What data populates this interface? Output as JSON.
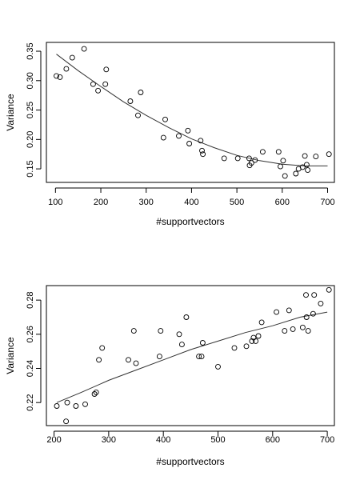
{
  "chart_data": [
    {
      "type": "scatter",
      "xlabel": "#supportvectors",
      "ylabel": "Variance",
      "xlim": [
        80,
        715
      ],
      "ylim": [
        0.127,
        0.365
      ],
      "xticks": [
        100,
        200,
        300,
        400,
        500,
        600,
        700
      ],
      "xtick_labels": [
        "100",
        "200",
        "300",
        "400",
        "500",
        "600",
        "700"
      ],
      "yticks": [
        0.15,
        0.2,
        0.25,
        0.3,
        0.35
      ],
      "ytick_labels": [
        "0.15",
        "0.20",
        "0.25",
        "0.30",
        "0.35"
      ],
      "grid": false,
      "points": [
        [
          102,
          0.308
        ],
        [
          110,
          0.306
        ],
        [
          124,
          0.32
        ],
        [
          137,
          0.339
        ],
        [
          163,
          0.354
        ],
        [
          183,
          0.294
        ],
        [
          194,
          0.283
        ],
        [
          210,
          0.294
        ],
        [
          212,
          0.319
        ],
        [
          265,
          0.265
        ],
        [
          282,
          0.241
        ],
        [
          288,
          0.28
        ],
        [
          338,
          0.203
        ],
        [
          342,
          0.234
        ],
        [
          372,
          0.206
        ],
        [
          392,
          0.215
        ],
        [
          395,
          0.193
        ],
        [
          420,
          0.198
        ],
        [
          423,
          0.181
        ],
        [
          425,
          0.175
        ],
        [
          472,
          0.168
        ],
        [
          502,
          0.168
        ],
        [
          527,
          0.168
        ],
        [
          528,
          0.156
        ],
        [
          532,
          0.16
        ],
        [
          540,
          0.165
        ],
        [
          557,
          0.179
        ],
        [
          592,
          0.179
        ],
        [
          596,
          0.154
        ],
        [
          602,
          0.164
        ],
        [
          606,
          0.138
        ],
        [
          630,
          0.142
        ],
        [
          636,
          0.15
        ],
        [
          645,
          0.153
        ],
        [
          650,
          0.172
        ],
        [
          654,
          0.157
        ],
        [
          656,
          0.148
        ],
        [
          674,
          0.171
        ],
        [
          703,
          0.175
        ]
      ],
      "trend": [
        [
          102,
          0.345
        ],
        [
          150,
          0.317
        ],
        [
          200,
          0.29
        ],
        [
          250,
          0.264
        ],
        [
          300,
          0.241
        ],
        [
          350,
          0.22
        ],
        [
          400,
          0.201
        ],
        [
          450,
          0.186
        ],
        [
          500,
          0.173
        ],
        [
          550,
          0.164
        ],
        [
          600,
          0.158
        ],
        [
          650,
          0.155
        ],
        [
          700,
          0.155
        ]
      ]
    },
    {
      "type": "scatter",
      "xlabel": "#supportvectors",
      "ylabel": "Variance",
      "xlim": [
        186,
        713
      ],
      "ylim": [
        0.2065,
        0.2885
      ],
      "xticks": [
        200,
        300,
        400,
        500,
        600,
        700
      ],
      "xtick_labels": [
        "200",
        "300",
        "400",
        "500",
        "600",
        "700"
      ],
      "yticks": [
        0.22,
        0.24,
        0.26,
        0.28
      ],
      "ytick_labels": [
        "0.22",
        "0.24",
        "0.26",
        "0.28"
      ],
      "grid": false,
      "points": [
        [
          205,
          0.218
        ],
        [
          222,
          0.209
        ],
        [
          224,
          0.22
        ],
        [
          240,
          0.218
        ],
        [
          257,
          0.219
        ],
        [
          274,
          0.225
        ],
        [
          277,
          0.226
        ],
        [
          282,
          0.245
        ],
        [
          288,
          0.252
        ],
        [
          336,
          0.245
        ],
        [
          346,
          0.262
        ],
        [
          350,
          0.243
        ],
        [
          393,
          0.247
        ],
        [
          395,
          0.262
        ],
        [
          429,
          0.26
        ],
        [
          434,
          0.254
        ],
        [
          442,
          0.27
        ],
        [
          465,
          0.247
        ],
        [
          470,
          0.247
        ],
        [
          472,
          0.255
        ],
        [
          500,
          0.241
        ],
        [
          530,
          0.252
        ],
        [
          552,
          0.253
        ],
        [
          562,
          0.256
        ],
        [
          565,
          0.258
        ],
        [
          569,
          0.256
        ],
        [
          574,
          0.259
        ],
        [
          580,
          0.267
        ],
        [
          607,
          0.273
        ],
        [
          622,
          0.262
        ],
        [
          630,
          0.274
        ],
        [
          637,
          0.263
        ],
        [
          655,
          0.264
        ],
        [
          661,
          0.283
        ],
        [
          662,
          0.27
        ],
        [
          665,
          0.262
        ],
        [
          676,
          0.283
        ],
        [
          688,
          0.278
        ],
        [
          703,
          0.286
        ],
        [
          674,
          0.272
        ]
      ],
      "trend": [
        [
          205,
          0.22
        ],
        [
          250,
          0.226
        ],
        [
          300,
          0.233
        ],
        [
          350,
          0.239
        ],
        [
          400,
          0.245
        ],
        [
          450,
          0.251
        ],
        [
          500,
          0.256
        ],
        [
          550,
          0.261
        ],
        [
          600,
          0.265
        ],
        [
          650,
          0.27
        ],
        [
          700,
          0.273
        ]
      ]
    }
  ]
}
